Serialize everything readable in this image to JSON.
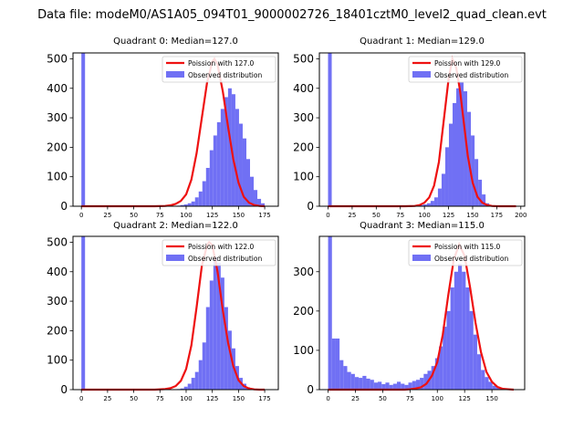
{
  "figure_title": "Data file: modeM0/AS1A05_094T01_9000002726_18401cztM0_level2_quad_clean.evt",
  "colors": {
    "hist": "#7070f4",
    "curve": "#ee1111",
    "axis": "#000000"
  },
  "chart_data": [
    {
      "type": "bar",
      "title": "Quadrant 0: Median=127.0",
      "bin_width": 3.5,
      "xlim": [
        -8,
        188
      ],
      "ylim": [
        0,
        520
      ],
      "xticks": [
        0,
        25,
        50,
        75,
        100,
        125,
        150,
        175
      ],
      "yticks": [
        0,
        100,
        200,
        300,
        400,
        500
      ],
      "hist_x": [
        0,
        3.5,
        7,
        10.5,
        14,
        17.5,
        21,
        24.5,
        28,
        31.5,
        35,
        38.5,
        42,
        45.5,
        49,
        52.5,
        56,
        59.5,
        63,
        66.5,
        70,
        73.5,
        77,
        80.5,
        84,
        87.5,
        91,
        94.5,
        98,
        101.5,
        105,
        108.5,
        112,
        115.5,
        119,
        122.5,
        126,
        129.5,
        133,
        136.5,
        140,
        143.5,
        147,
        150.5,
        154,
        157.5,
        161,
        164.5,
        168,
        171.5
      ],
      "hist_y": [
        520,
        0,
        0,
        0,
        0,
        0,
        0,
        0,
        0,
        0,
        0,
        0,
        0,
        0,
        0,
        0,
        0,
        0,
        0,
        0,
        0,
        0,
        0,
        0,
        0,
        0,
        2,
        4,
        6,
        10,
        16,
        30,
        50,
        85,
        130,
        190,
        240,
        285,
        330,
        370,
        400,
        380,
        330,
        280,
        230,
        160,
        100,
        55,
        25,
        10
      ],
      "curve_x": [
        0,
        20,
        40,
        60,
        70,
        80,
        85,
        90,
        95,
        100,
        105,
        110,
        115,
        120,
        125,
        127,
        130,
        135,
        140,
        145,
        150,
        155,
        160,
        165,
        170,
        175
      ],
      "curve_y": [
        0,
        0,
        0,
        0,
        0,
        1,
        3,
        8,
        18,
        40,
        90,
        180,
        300,
        420,
        490,
        500,
        480,
        390,
        270,
        160,
        80,
        32,
        12,
        4,
        1,
        0
      ],
      "legend": {
        "curve": "Poission with 127.0",
        "hist": "Observed distribution",
        "loc": "upper right"
      }
    },
    {
      "type": "bar",
      "title": "Quadrant 1: Median=129.0",
      "bin_width": 3.8,
      "xlim": [
        -9,
        204
      ],
      "ylim": [
        0,
        520
      ],
      "xticks": [
        0,
        25,
        50,
        75,
        100,
        125,
        150,
        175,
        200
      ],
      "yticks": [
        0,
        100,
        200,
        300,
        400,
        500
      ],
      "hist_x": [
        0,
        3.8,
        7.6,
        11.4,
        15.2,
        19,
        22.8,
        26.6,
        30.4,
        34.2,
        38,
        41.8,
        45.6,
        49.4,
        53.2,
        57,
        60.8,
        64.6,
        68.4,
        72.2,
        76,
        79.8,
        83.6,
        87.4,
        91.2,
        95,
        98.8,
        102.6,
        106.4,
        110.2,
        114,
        117.8,
        121.6,
        125.4,
        129.2,
        133,
        136.8,
        140.6,
        144.4,
        148.2,
        152,
        155.8,
        159.6,
        163.4
      ],
      "hist_y": [
        520,
        0,
        0,
        0,
        0,
        0,
        0,
        0,
        0,
        0,
        0,
        0,
        0,
        0,
        0,
        0,
        0,
        0,
        0,
        0,
        0,
        0,
        0,
        0,
        2,
        4,
        6,
        10,
        18,
        30,
        60,
        110,
        200,
        280,
        350,
        400,
        420,
        390,
        320,
        240,
        160,
        90,
        40,
        10
      ],
      "curve_x": [
        0,
        20,
        40,
        60,
        70,
        80,
        90,
        95,
        100,
        105,
        110,
        115,
        120,
        125,
        129,
        133,
        137,
        141,
        145,
        150,
        155,
        160,
        165,
        170,
        175,
        180,
        185,
        190,
        195
      ],
      "curve_y": [
        0,
        0,
        0,
        0,
        0,
        0,
        1,
        4,
        12,
        30,
        70,
        150,
        290,
        430,
        500,
        470,
        390,
        280,
        170,
        80,
        32,
        12,
        4,
        1,
        0,
        0,
        0,
        0,
        0
      ],
      "legend": {
        "curve": "Poission with 129.0",
        "hist": "Observed distribution",
        "loc": "upper right"
      }
    },
    {
      "type": "bar",
      "title": "Quadrant 2: Median=122.0",
      "bin_width": 3.5,
      "xlim": [
        -8,
        188
      ],
      "ylim": [
        0,
        520
      ],
      "xticks": [
        0,
        25,
        50,
        75,
        100,
        125,
        150,
        175
      ],
      "yticks": [
        0,
        100,
        200,
        300,
        400,
        500
      ],
      "hist_x": [
        0,
        3.5,
        7,
        10.5,
        14,
        17.5,
        21,
        24.5,
        28,
        31.5,
        35,
        38.5,
        42,
        45.5,
        49,
        52.5,
        56,
        59.5,
        63,
        66.5,
        70,
        73.5,
        77,
        80.5,
        84,
        87.5,
        91,
        94.5,
        98,
        101.5,
        105,
        108.5,
        112,
        115.5,
        119,
        122.5,
        126,
        129.5,
        133,
        136.5,
        140,
        143.5,
        147,
        150.5,
        154,
        157.5,
        161,
        164.5,
        168,
        171.5
      ],
      "hist_y": [
        520,
        0,
        0,
        0,
        0,
        0,
        0,
        0,
        0,
        0,
        0,
        0,
        0,
        0,
        0,
        0,
        0,
        0,
        0,
        0,
        0,
        0,
        0,
        0,
        0,
        0,
        2,
        4,
        10,
        20,
        40,
        60,
        100,
        160,
        280,
        370,
        450,
        430,
        380,
        280,
        200,
        140,
        80,
        40,
        20,
        8,
        3,
        1,
        0,
        0
      ],
      "curve_x": [
        0,
        20,
        40,
        60,
        70,
        80,
        85,
        90,
        95,
        100,
        105,
        110,
        115,
        120,
        122,
        125,
        130,
        135,
        140,
        145,
        150,
        155,
        160,
        165,
        170,
        175
      ],
      "curve_y": [
        0,
        0,
        0,
        0,
        0,
        2,
        5,
        12,
        30,
        70,
        150,
        280,
        420,
        490,
        500,
        490,
        400,
        270,
        160,
        80,
        32,
        12,
        4,
        1,
        0,
        0
      ],
      "legend": {
        "curve": "Poission with 122.0",
        "hist": "Observed distribution",
        "loc": "upper right"
      }
    },
    {
      "type": "bar",
      "title": "Quadrant 3: Median=115.0",
      "bin_width": 3.5,
      "xlim": [
        -8,
        180
      ],
      "ylim": [
        0,
        390
      ],
      "xticks": [
        0,
        25,
        50,
        75,
        100,
        125,
        150
      ],
      "yticks": [
        0,
        100,
        200,
        300
      ],
      "hist_x": [
        0,
        3.5,
        7,
        10.5,
        14,
        17.5,
        21,
        24.5,
        28,
        31.5,
        35,
        38.5,
        42,
        45.5,
        49,
        52.5,
        56,
        59.5,
        63,
        66.5,
        70,
        73.5,
        77,
        80.5,
        84,
        87.5,
        91,
        94.5,
        98,
        101.5,
        105,
        108.5,
        112,
        115.5,
        119,
        122.5,
        126,
        129.5,
        133,
        136.5,
        140,
        143.5,
        147,
        150.5,
        154,
        157.5,
        161,
        164.5
      ],
      "hist_y": [
        390,
        130,
        130,
        75,
        60,
        45,
        40,
        32,
        30,
        35,
        28,
        25,
        18,
        20,
        14,
        18,
        12,
        15,
        20,
        15,
        12,
        18,
        22,
        25,
        30,
        40,
        48,
        60,
        80,
        110,
        160,
        200,
        260,
        300,
        320,
        300,
        260,
        200,
        140,
        90,
        50,
        32,
        20,
        10,
        5,
        2,
        1,
        0
      ],
      "curve_x": [
        0,
        30,
        50,
        60,
        70,
        75,
        80,
        85,
        90,
        95,
        100,
        105,
        110,
        115,
        120,
        125,
        130,
        135,
        140,
        145,
        150,
        155,
        160,
        165,
        170
      ],
      "curve_y": [
        0,
        0,
        0,
        0,
        0,
        1,
        3,
        6,
        15,
        35,
        70,
        140,
        240,
        330,
        370,
        340,
        260,
        170,
        95,
        45,
        20,
        7,
        2,
        1,
        0
      ],
      "legend": {
        "curve": "Poission with 115.0",
        "hist": "Observed distribution",
        "loc": "upper right"
      }
    }
  ]
}
